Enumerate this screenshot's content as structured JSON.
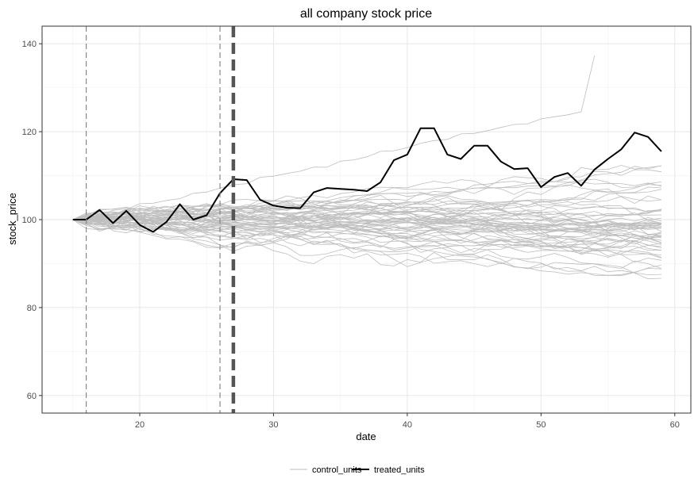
{
  "chart_data": {
    "type": "line",
    "title": "all company stock price",
    "xlabel": "date",
    "ylabel": "stock_price",
    "xlim": [
      12.7,
      61.2
    ],
    "ylim": [
      56,
      144
    ],
    "x_ticks": [
      20,
      30,
      40,
      50,
      60
    ],
    "y_ticks": [
      60,
      80,
      100,
      120,
      140
    ],
    "grid": true,
    "legend_position": "bottom",
    "legend": [
      {
        "label": "control_units",
        "color": "#bebebe"
      },
      {
        "label": "treated_units",
        "color": "#000000"
      }
    ],
    "vlines": [
      {
        "x": 16,
        "style": "dashed",
        "weight": "thin"
      },
      {
        "x": 26,
        "style": "dashed",
        "weight": "thin"
      },
      {
        "x": 27,
        "style": "dashed",
        "weight": "thick"
      }
    ],
    "x": [
      15,
      16,
      17,
      18,
      19,
      20,
      21,
      22,
      23,
      24,
      25,
      26,
      27,
      28,
      29,
      30,
      31,
      32,
      33,
      34,
      35,
      36,
      37,
      38,
      39,
      40,
      41,
      42,
      43,
      44,
      45,
      46,
      47,
      48,
      49,
      50,
      51,
      52,
      53,
      54,
      55,
      56,
      57,
      58,
      59
    ],
    "series": [
      {
        "name": "treated_units",
        "values": [
          100,
          100,
          102.2,
          99.2,
          102,
          98.8,
          97.2,
          99.5,
          103.5,
          100,
          101,
          106,
          109.2,
          109,
          104.5,
          103.2,
          102.7,
          102.6,
          106.2,
          107.2,
          107,
          106.8,
          106.5,
          108.5,
          113.5,
          114.8,
          120.8,
          120.8,
          114.8,
          113.8,
          116.8,
          116.8,
          113.2,
          111.5,
          111.7,
          107.4,
          109.7,
          110.6,
          107.7,
          111.4,
          113.8,
          116,
          119.8,
          118.8,
          115.5
        ]
      }
    ],
    "control_units": {
      "count": 60,
      "start_value": 100,
      "typical_range": [
        83,
        127
      ],
      "final_value_range": [
        82,
        126
      ],
      "peak_value": 137.3,
      "peak_x": 54
    }
  }
}
